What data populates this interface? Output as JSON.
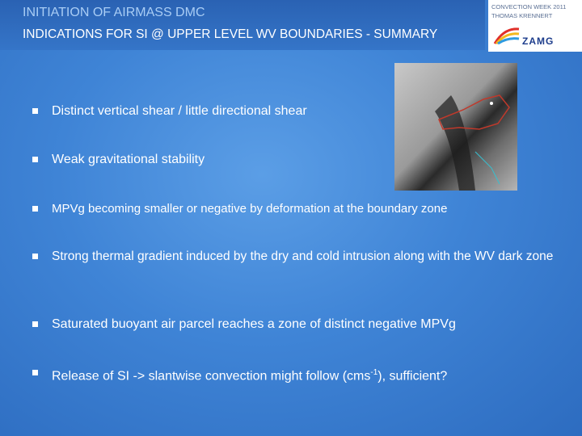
{
  "header": {
    "title_line1": "INITIATION OF AIRMASS DMC",
    "title_line2": "INDICATIONS FOR SI @ UPPER LEVEL WV BOUNDARIES - SUMMARY",
    "event": "CONVECTION WEEK 2011",
    "author": "THOMAS KRENNERT"
  },
  "logo": {
    "text": "ZAMG"
  },
  "bullets": [
    {
      "text": "Distinct vertical shear / little directional shear"
    },
    {
      "text": "Weak gravitational stability"
    },
    {
      "text": "MPVg becoming smaller or negative by deformation at the boundary zone"
    },
    {
      "text": "Strong thermal gradient induced by the dry and cold intrusion along with the WV dark zone"
    },
    {
      "text": "Saturated buoyant air parcel reaches a zone of distinct negative MPVg"
    },
    {
      "text": "Release of SI -> slantwise convection might follow (cms",
      "sup": "-1",
      "text_after": "), sufficient?"
    }
  ]
}
